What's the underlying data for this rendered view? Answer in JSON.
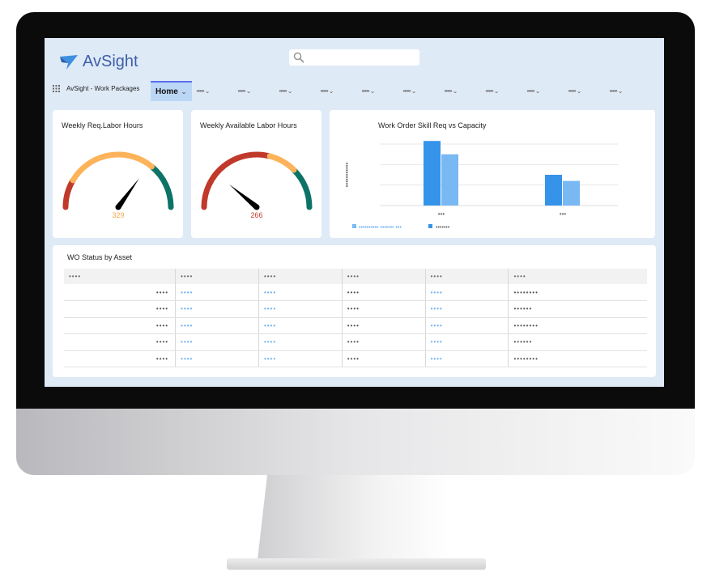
{
  "app": {
    "logo_text": "AvSight",
    "app_name": "AvSight - Work Packages",
    "search_placeholder": ""
  },
  "nav": {
    "items": [
      {
        "label": "Home",
        "active": true
      },
      {
        "label": "•••••"
      },
      {
        "label": "•••••"
      },
      {
        "label": "•••••"
      },
      {
        "label": "•••••"
      },
      {
        "label": "•••••"
      },
      {
        "label": "•••••"
      },
      {
        "label": "•••••"
      },
      {
        "label": "•••••"
      },
      {
        "label": "•••••"
      },
      {
        "label": "•••••"
      },
      {
        "label": "•••••"
      }
    ]
  },
  "gauges": [
    {
      "title": "Weekly Req.Labor Hours",
      "value": "329",
      "value_color": "#f5a849",
      "needle_fraction": 0.7,
      "bands": [
        0.17,
        0.72
      ]
    },
    {
      "title": "Weekly Available Labor Hours",
      "value": "266",
      "value_color": "#c0392b",
      "needle_fraction": 0.22,
      "bands": [
        0.58,
        0.75
      ]
    }
  ],
  "colors": {
    "red": "#c0392b",
    "orange": "#fdb35a",
    "teal": "#0c7366",
    "bar_dark": "#3593ea",
    "bar_light": "#78b8f3"
  },
  "chart_data": {
    "type": "bar",
    "title": "Work Order Skill Req vs Capacity",
    "ylabel": "•••••••••••",
    "categories": [
      "•••",
      "•••"
    ],
    "series": [
      {
        "name": "•••••••",
        "values": [
          3.15,
          1.5
        ]
      },
      {
        "name": "•••••••••• ••••••• •••",
        "values": [
          2.5,
          1.2
        ]
      }
    ],
    "ylim": [
      0,
      3
    ],
    "grid": true,
    "legend": "bottom-left"
  },
  "table": {
    "title": "WO Status by Asset",
    "headers": [
      "••••",
      "••••",
      "••••",
      "••••",
      "••••",
      "••••"
    ],
    "rows": [
      [
        "••••",
        "••••",
        "••••",
        "••••",
        "••••",
        "••••••••"
      ],
      [
        "••••",
        "••••",
        "••••",
        "••••",
        "••••",
        "••••••"
      ],
      [
        "••••",
        "••••",
        "••••",
        "••••",
        "••••",
        "••••••••"
      ],
      [
        "••••",
        "••••",
        "••••",
        "••••",
        "••••",
        "••••••"
      ],
      [
        "••••",
        "••••",
        "••••",
        "••••",
        "••••",
        "••••••••"
      ]
    ]
  }
}
